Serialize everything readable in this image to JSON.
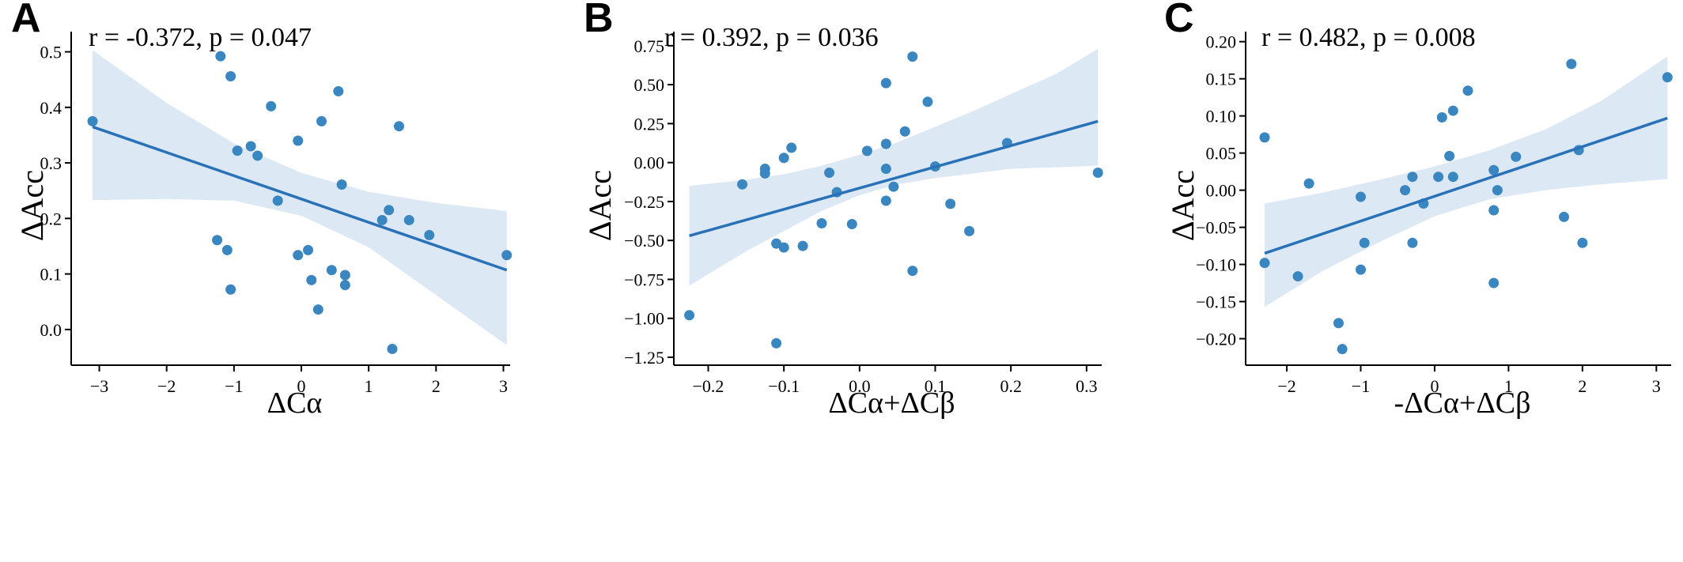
{
  "colors": {
    "points": "#3a86c0",
    "line": "#2a72b8",
    "band": "#dce8f4"
  },
  "chart_data": [
    {
      "type": "scatter",
      "panel": "A",
      "annotation": "r = -0.372, p = 0.047",
      "ylabel": "ΔAcc",
      "xlabel": "ΔCα",
      "xlim": [
        -3.3,
        3.1
      ],
      "ylim": [
        -0.05,
        0.525
      ],
      "xticks": [
        -3,
        -2,
        -1,
        0,
        1,
        2,
        3
      ],
      "xtick_labels": [
        "−3",
        "−2",
        "−1",
        "0",
        "1",
        "2",
        "3"
      ],
      "yticks": [
        0.0,
        0.1,
        0.2,
        0.3,
        0.4,
        0.5
      ],
      "ytick_labels": [
        "0.0",
        "0.1",
        "0.2",
        "0.3",
        "0.4",
        "0.5"
      ],
      "points": [
        [
          -3.1,
          0.375
        ],
        [
          -1.2,
          0.492
        ],
        [
          -1.05,
          0.456
        ],
        [
          -0.95,
          0.322
        ],
        [
          -0.75,
          0.33
        ],
        [
          -0.65,
          0.313
        ],
        [
          -0.45,
          0.402
        ],
        [
          -0.35,
          0.232
        ],
        [
          -0.05,
          0.34
        ],
        [
          0.3,
          0.375
        ],
        [
          0.55,
          0.429
        ],
        [
          0.6,
          0.261
        ],
        [
          1.45,
          0.366
        ],
        [
          1.2,
          0.197
        ],
        [
          1.3,
          0.215
        ],
        [
          1.6,
          0.197
        ],
        [
          1.9,
          0.17
        ],
        [
          3.05,
          0.134
        ],
        [
          -1.25,
          0.161
        ],
        [
          -1.1,
          0.143
        ],
        [
          -1.05,
          0.072
        ],
        [
          0.1,
          0.143
        ],
        [
          -0.05,
          0.134
        ],
        [
          0.45,
          0.107
        ],
        [
          0.65,
          0.098
        ],
        [
          0.65,
          0.08
        ],
        [
          0.15,
          0.089
        ],
        [
          0.25,
          0.036
        ],
        [
          1.35,
          -0.035
        ]
      ],
      "fit": {
        "x": [
          -3.1,
          3.05
        ],
        "y": [
          0.365,
          0.107
        ]
      },
      "ci_upper": [
        [
          -3.1,
          0.503
        ],
        [
          -2.0,
          0.408
        ],
        [
          -1.0,
          0.335
        ],
        [
          0.0,
          0.282
        ],
        [
          1.0,
          0.248
        ],
        [
          2.0,
          0.228
        ],
        [
          3.05,
          0.213
        ]
      ],
      "ci_lower": [
        [
          -3.1,
          0.233
        ],
        [
          -2.0,
          0.235
        ],
        [
          -1.0,
          0.232
        ],
        [
          0.0,
          0.205
        ],
        [
          1.0,
          0.148
        ],
        [
          2.0,
          0.062
        ],
        [
          3.05,
          -0.028
        ]
      ]
    },
    {
      "type": "scatter",
      "panel": "B",
      "annotation": "r = 0.392, p = 0.036",
      "ylabel": "ΔAcc",
      "xlabel": "ΔCα+ΔCβ",
      "xlim": [
        -0.235,
        0.32
      ],
      "ylim": [
        -1.25,
        0.8
      ],
      "xticks": [
        -0.2,
        -0.1,
        0.0,
        0.1,
        0.2,
        0.3
      ],
      "xtick_labels": [
        "−0.2",
        "−0.1",
        "0.0",
        "0.1",
        "0.2",
        "0.3"
      ],
      "yticks": [
        -1.25,
        -1.0,
        -0.75,
        -0.5,
        -0.25,
        0.0,
        0.25,
        0.5,
        0.75
      ],
      "ytick_labels": [
        "−1.25",
        "−1.00",
        "−0.75",
        "−0.50",
        "−0.25",
        "0.00",
        "0.25",
        "0.50",
        "0.75"
      ],
      "points": [
        [
          -0.225,
          -0.98
        ],
        [
          -0.155,
          -0.14
        ],
        [
          -0.125,
          -0.04
        ],
        [
          -0.125,
          -0.07
        ],
        [
          -0.1,
          0.03
        ],
        [
          -0.09,
          0.095
        ],
        [
          -0.11,
          -0.52
        ],
        [
          -0.1,
          -0.545
        ],
        [
          -0.075,
          -0.535
        ],
        [
          -0.11,
          -1.16
        ],
        [
          -0.05,
          -0.39
        ],
        [
          -0.04,
          -0.065
        ],
        [
          -0.03,
          -0.19
        ],
        [
          -0.01,
          -0.395
        ],
        [
          0.01,
          0.075
        ],
        [
          0.035,
          0.51
        ],
        [
          0.035,
          0.12
        ],
        [
          0.035,
          -0.04
        ],
        [
          0.035,
          -0.245
        ],
        [
          0.045,
          -0.155
        ],
        [
          0.06,
          0.2
        ],
        [
          0.07,
          0.68
        ],
        [
          0.07,
          -0.695
        ],
        [
          0.09,
          0.39
        ],
        [
          0.1,
          -0.025
        ],
        [
          0.12,
          -0.265
        ],
        [
          0.145,
          -0.44
        ],
        [
          0.195,
          0.125
        ],
        [
          0.315,
          -0.065
        ]
      ],
      "fit": {
        "x": [
          -0.225,
          0.315
        ],
        "y": [
          -0.47,
          0.265
        ]
      },
      "ci_upper": [
        [
          -0.225,
          -0.15
        ],
        [
          -0.15,
          -0.11
        ],
        [
          -0.1,
          -0.075
        ],
        [
          -0.05,
          -0.02
        ],
        [
          0.0,
          0.05
        ],
        [
          0.05,
          0.13
        ],
        [
          0.1,
          0.23
        ],
        [
          0.15,
          0.33
        ],
        [
          0.2,
          0.44
        ],
        [
          0.26,
          0.57
        ],
        [
          0.315,
          0.73
        ]
      ],
      "ci_lower": [
        [
          -0.225,
          -0.79
        ],
        [
          -0.15,
          -0.57
        ],
        [
          -0.1,
          -0.44
        ],
        [
          -0.05,
          -0.31
        ],
        [
          0.0,
          -0.21
        ],
        [
          0.05,
          -0.14
        ],
        [
          0.1,
          -0.1
        ],
        [
          0.15,
          -0.07
        ],
        [
          0.2,
          -0.04
        ],
        [
          0.26,
          -0.03
        ],
        [
          0.315,
          -0.02
        ]
      ]
    },
    {
      "type": "scatter",
      "panel": "C",
      "annotation": "r = 0.482, p = 0.008",
      "ylabel": "ΔAcc",
      "xlabel": "-ΔCα+ΔCβ",
      "xlim": [
        -2.45,
        3.2
      ],
      "ylim": [
        -0.225,
        0.205
      ],
      "xticks": [
        -2,
        -1,
        0,
        1,
        2,
        3
      ],
      "xtick_labels": [
        "−2",
        "−1",
        "0",
        "1",
        "2",
        "3"
      ],
      "yticks": [
        -0.2,
        -0.15,
        -0.1,
        -0.05,
        0.0,
        0.05,
        0.1,
        0.15,
        0.2
      ],
      "ytick_labels": [
        "−0.20",
        "−0.15",
        "−0.10",
        "−0.05",
        "0.00",
        "0.05",
        "0.10",
        "0.15",
        "0.20"
      ],
      "points": [
        [
          -2.3,
          0.071
        ],
        [
          -2.3,
          -0.098
        ],
        [
          -1.85,
          -0.116
        ],
        [
          -1.7,
          0.009
        ],
        [
          -1.3,
          -0.179
        ],
        [
          -1.25,
          -0.214
        ],
        [
          -1.0,
          -0.009
        ],
        [
          -1.0,
          -0.107
        ],
        [
          -0.95,
          -0.071
        ],
        [
          -0.4,
          0.0
        ],
        [
          -0.3,
          0.018
        ],
        [
          -0.3,
          -0.071
        ],
        [
          -0.15,
          -0.018
        ],
        [
          0.05,
          0.018
        ],
        [
          0.1,
          0.098
        ],
        [
          0.2,
          0.046
        ],
        [
          0.25,
          0.107
        ],
        [
          0.25,
          0.018
        ],
        [
          0.45,
          0.134
        ],
        [
          0.8,
          0.027
        ],
        [
          0.8,
          -0.027
        ],
        [
          0.8,
          -0.125
        ],
        [
          0.85,
          0.0
        ],
        [
          1.1,
          0.045
        ],
        [
          1.75,
          -0.036
        ],
        [
          1.85,
          0.17
        ],
        [
          1.95,
          0.054
        ],
        [
          2.0,
          -0.071
        ],
        [
          3.15,
          0.152
        ]
      ],
      "fit": {
        "x": [
          -2.3,
          3.15
        ],
        "y": [
          -0.085,
          0.097
        ]
      },
      "ci_upper": [
        [
          -2.3,
          -0.018
        ],
        [
          -1.5,
          -0.003
        ],
        [
          -0.75,
          0.014
        ],
        [
          0.0,
          0.032
        ],
        [
          0.75,
          0.054
        ],
        [
          1.5,
          0.082
        ],
        [
          2.25,
          0.12
        ],
        [
          3.15,
          0.18
        ]
      ],
      "ci_lower": [
        [
          -2.3,
          -0.157
        ],
        [
          -1.5,
          -0.108
        ],
        [
          -0.75,
          -0.07
        ],
        [
          0.0,
          -0.035
        ],
        [
          0.75,
          -0.012
        ],
        [
          1.5,
          0.0
        ],
        [
          2.25,
          0.008
        ],
        [
          3.15,
          0.015
        ]
      ]
    }
  ]
}
